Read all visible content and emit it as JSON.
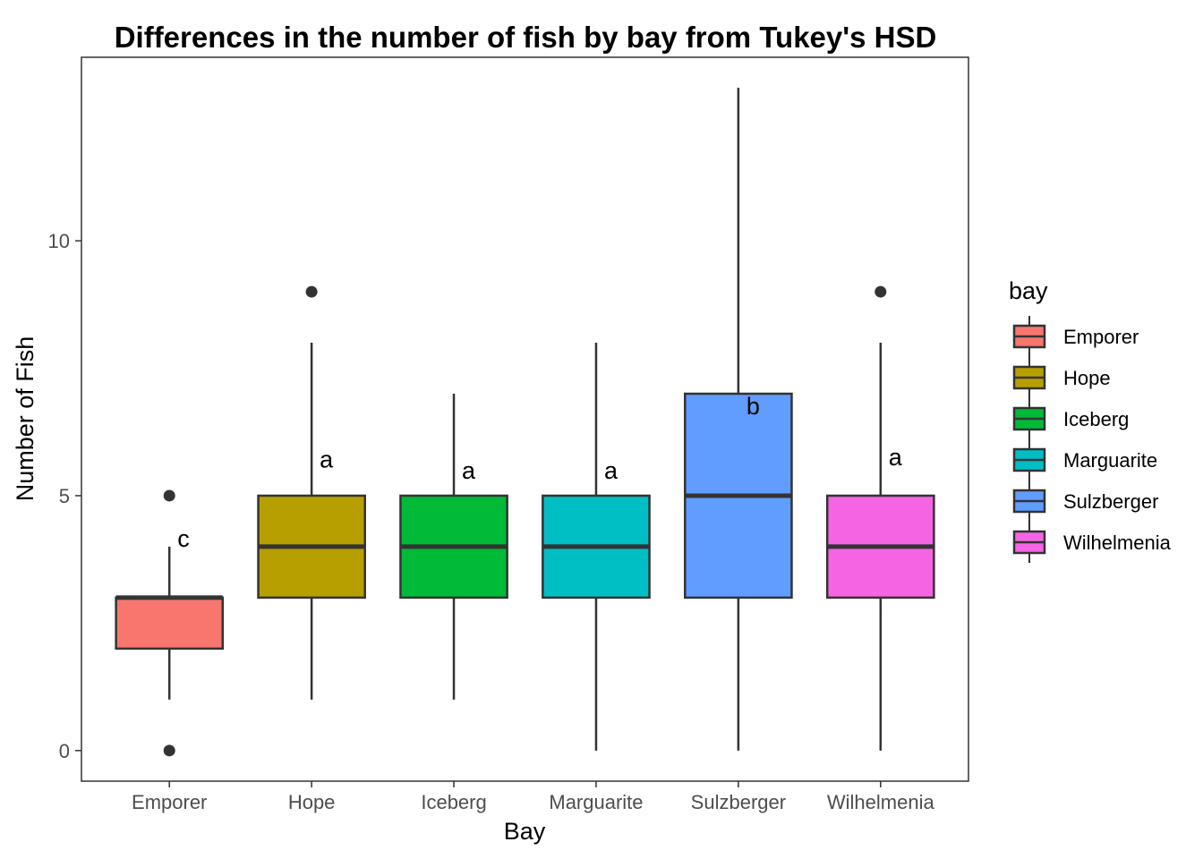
{
  "chart_data": {
    "type": "box",
    "title": "Differences in the number of fish by bay from Tukey's HSD",
    "xlabel": "Bay",
    "ylabel": "Number of Fish",
    "ylim": [
      -0.6,
      13.6
    ],
    "yticks": [
      0,
      5,
      10
    ],
    "grid": false,
    "legend": {
      "title": "bay",
      "position": "right"
    },
    "categories": [
      "Emporer",
      "Hope",
      "Iceberg",
      "Marguarite",
      "Sulzberger",
      "Wilhelmenia"
    ],
    "series": [
      {
        "name": "Emporer",
        "color": "#F8766D",
        "whisker_low": 1,
        "q1": 2,
        "median": 3,
        "q3": 3,
        "whisker_high": 4,
        "outliers": [
          5,
          0
        ],
        "letter": "c",
        "letter_y": 4.0
      },
      {
        "name": "Hope",
        "color": "#B79F00",
        "whisker_low": 1,
        "q1": 3,
        "median": 4,
        "q3": 5,
        "whisker_high": 8,
        "outliers": [
          9
        ],
        "letter": "a",
        "letter_y": 5.55
      },
      {
        "name": "Iceberg",
        "color": "#00BA38",
        "whisker_low": 1,
        "q1": 3,
        "median": 4,
        "q3": 5,
        "whisker_high": 7,
        "outliers": [],
        "letter": "a",
        "letter_y": 5.33
      },
      {
        "name": "Marguarite",
        "color": "#00BFC4",
        "whisker_low": 0,
        "q1": 3,
        "median": 4,
        "q3": 5,
        "whisker_high": 8,
        "outliers": [],
        "letter": "a",
        "letter_y": 5.33
      },
      {
        "name": "Sulzberger",
        "color": "#619CFF",
        "whisker_low": 0,
        "q1": 3,
        "median": 5,
        "q3": 7,
        "whisker_high": 13,
        "outliers": [],
        "letter": "b",
        "letter_y": 6.6
      },
      {
        "name": "Wilhelmenia",
        "color": "#F564E3",
        "whisker_low": 0,
        "q1": 3,
        "median": 4,
        "q3": 5,
        "whisker_high": 8,
        "outliers": [
          9
        ],
        "letter": "a",
        "letter_y": 5.6
      }
    ]
  }
}
